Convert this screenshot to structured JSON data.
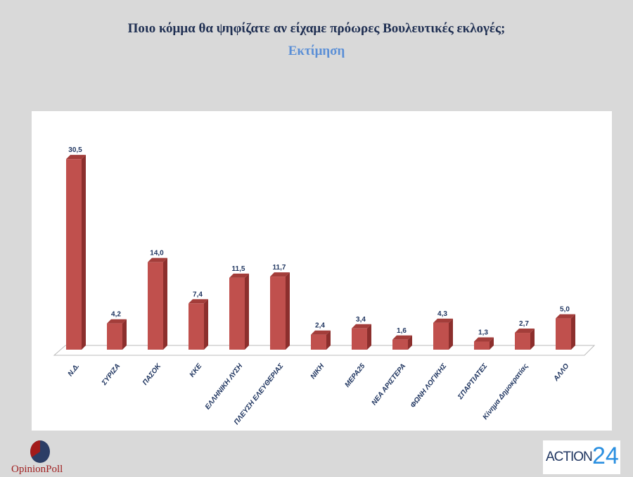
{
  "chart_data": {
    "type": "bar",
    "title": "Ποιο κόμμα θα ψηφίζατε αν είχαμε πρόωρες Βουλευτικές εκλογές;",
    "subtitle": "Εκτίμηση",
    "categories": [
      "Ν.Δ.",
      "ΣΥΡΙΖΑ",
      "ΠΑΣΟΚ",
      "ΚΚΕ",
      "ΕΛΛΗΝΙΚΗ ΛΥΣΗ",
      "ΠΛΕΥΣΗ ΕΛΕΥΘΕΡΙΑΣ",
      "ΝΙΚΗ",
      "ΜΕΡΑ25",
      "ΝΕΑ ΑΡΙΣΤΕΡΑ",
      "ΦΩΝΗ ΛΟΓΙΚΗΣ",
      "ΣΠΑΡΤΙΑΤΕΣ",
      "Κίνημα Δημοκρατίας",
      "ΑΛΛΟ"
    ],
    "values": [
      30.5,
      4.2,
      14.0,
      7.4,
      11.5,
      11.7,
      2.4,
      3.4,
      1.6,
      4.3,
      1.3,
      2.7,
      5.0
    ],
    "data_labels": [
      "30,5",
      "4,2",
      "14,0",
      "7,4",
      "11,5",
      "11,7",
      "2,4",
      "3,4",
      "1,6",
      "4,3",
      "1,3",
      "2,7",
      "5,0"
    ],
    "ylim": [
      0,
      35
    ],
    "grid": false,
    "bar_style": "3d",
    "colors": {
      "bar_front": "#c0504d",
      "bar_side": "#8c2f2d",
      "label": "#1f3560"
    }
  },
  "logos": {
    "left": "OpinionPoll",
    "right": "ACTION 24"
  }
}
